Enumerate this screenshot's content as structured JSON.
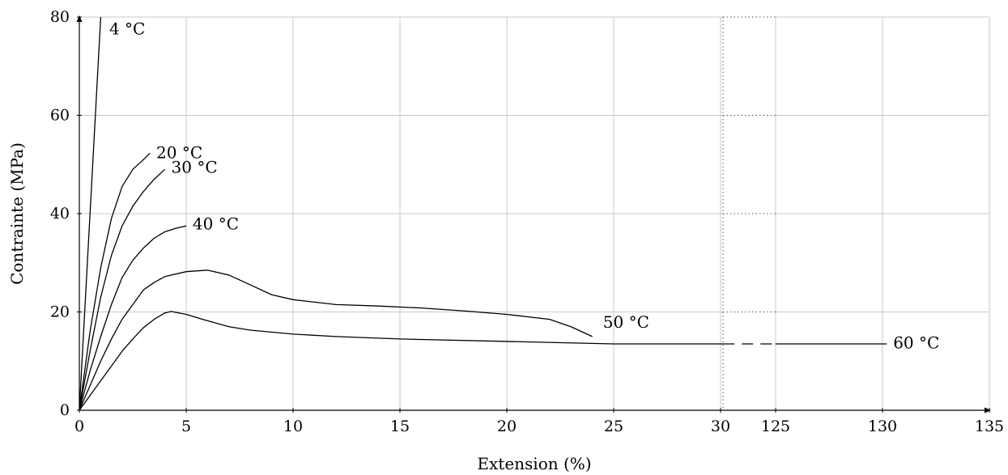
{
  "chart_data": {
    "type": "line",
    "xlabel": "Extension (%)",
    "ylabel": "Contrainte (MPa)",
    "grid": true,
    "axis_break": {
      "from": 30,
      "to": 125
    },
    "xticks": [
      0,
      5,
      10,
      15,
      20,
      25,
      30,
      125,
      130,
      135
    ],
    "xticks_labels": [
      "0",
      "5",
      "10",
      "15",
      "20",
      "25",
      "30",
      "125",
      "130",
      "135"
    ],
    "yticks": [
      0,
      20,
      40,
      60,
      80
    ],
    "yticks_labels": [
      "0",
      "20",
      "40",
      "60",
      "80"
    ],
    "ylim": [
      0,
      80
    ],
    "series": [
      {
        "name": "4 °C",
        "x": [
          0,
          1.0
        ],
        "y": [
          0,
          80
        ],
        "label_at": [
          1.4,
          76.5
        ]
      },
      {
        "name": "20 °C",
        "x": [
          0,
          0.5,
          1.0,
          1.5,
          2.0,
          2.5,
          3.0,
          3.3
        ],
        "y": [
          0,
          16,
          29,
          39,
          45.5,
          49,
          51,
          52.3
        ],
        "label_at": [
          3.6,
          51.3
        ]
      },
      {
        "name": "30 °C",
        "x": [
          0,
          0.5,
          1.0,
          1.5,
          2.0,
          2.5,
          3.0,
          3.5,
          4.0
        ],
        "y": [
          0,
          12,
          23,
          31.5,
          37.5,
          41.5,
          44.5,
          47,
          49
        ],
        "label_at": [
          4.3,
          48.3
        ]
      },
      {
        "name": "40 °C",
        "x": [
          0,
          0.5,
          1.0,
          1.5,
          2.0,
          2.5,
          3.0,
          3.5,
          4.0,
          4.5,
          5.0
        ],
        "y": [
          0,
          8,
          15,
          21.5,
          27,
          30.5,
          33,
          35,
          36.3,
          37,
          37.5
        ],
        "label_at": [
          5.3,
          36.8
        ]
      },
      {
        "name": "50 °C",
        "x": [
          0,
          0.5,
          1.0,
          1.5,
          2.0,
          2.5,
          3.0,
          3.5,
          4.0,
          5.0,
          6.0,
          7.0,
          8.0,
          9.0,
          10.0,
          12.0,
          14.0,
          16.0,
          18.0,
          20.0,
          22.0,
          23.0,
          24.0
        ],
        "y": [
          0,
          5,
          10,
          14.5,
          18.5,
          21.5,
          24.5,
          26,
          27.2,
          28.2,
          28.5,
          27.5,
          25.5,
          23.5,
          22.5,
          21.5,
          21.2,
          20.8,
          20.2,
          19.5,
          18.5,
          17,
          15
        ],
        "label_at": [
          24.5,
          16.8
        ]
      },
      {
        "name": "60 °C",
        "x": [
          0,
          0.5,
          1.0,
          1.5,
          2.0,
          2.5,
          3.0,
          3.5,
          4.0,
          4.3,
          5.0,
          6.0,
          7.0,
          8.0,
          10.0,
          12.0,
          15.0,
          20.0,
          25.0,
          30.0,
          30.3
        ],
        "y": [
          0,
          3,
          6,
          9,
          12,
          14.5,
          16.8,
          18.5,
          19.8,
          20.1,
          19.5,
          18.2,
          17,
          16.3,
          15.5,
          15.0,
          14.5,
          14.0,
          13.5,
          13.5,
          13.5
        ],
        "gap_dashed": {
          "x": [
            30.3,
            124.5
          ],
          "y": 13.5
        },
        "continuation": {
          "x": [
            124.5,
            130.2
          ],
          "y": [
            13.5,
            13.5
          ]
        },
        "label_at": [
          130.5,
          12.6
        ]
      }
    ]
  }
}
